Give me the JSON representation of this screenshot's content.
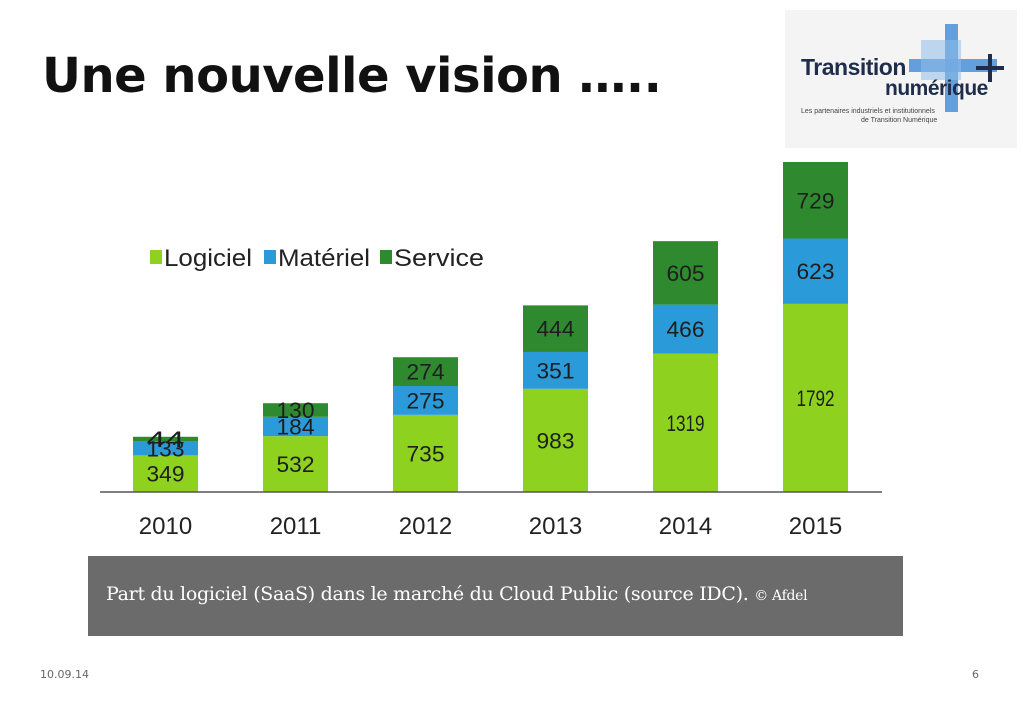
{
  "slide": {
    "title": "Une nouvelle vision …..",
    "date": "10.09.14",
    "page_number": "6"
  },
  "logo": {
    "word1": "Transition",
    "word2": "numérique",
    "plus": "+",
    "tagline1": "Les partenaires industriels et institutionnels",
    "tagline2": "de Transition Numérique",
    "colors": {
      "text": "#1f2d4a",
      "cross": "#4a8fd8"
    }
  },
  "caption": {
    "text": "Part du logiciel (SaaS) dans le marché du Cloud Public (source IDC).",
    "credit": "© Afdel"
  },
  "chart_data": {
    "type": "bar",
    "stacked": true,
    "categories": [
      "2010",
      "2011",
      "2012",
      "2013",
      "2014",
      "2015"
    ],
    "series": [
      {
        "name": "Logiciel",
        "color": "#8ed11f",
        "values": [
          349,
          532,
          735,
          983,
          1319,
          1792
        ]
      },
      {
        "name": "Matériel",
        "color": "#2a9bd8",
        "values": [
          133,
          184,
          275,
          351,
          466,
          623
        ]
      },
      {
        "name": "Service",
        "color": "#2f8a2f",
        "values": [
          44,
          130,
          274,
          444,
          605,
          729
        ]
      }
    ],
    "title": "",
    "xlabel": "",
    "ylabel": "",
    "ylim": [
      0,
      3144
    ],
    "legend": "top-left",
    "grid": false
  }
}
